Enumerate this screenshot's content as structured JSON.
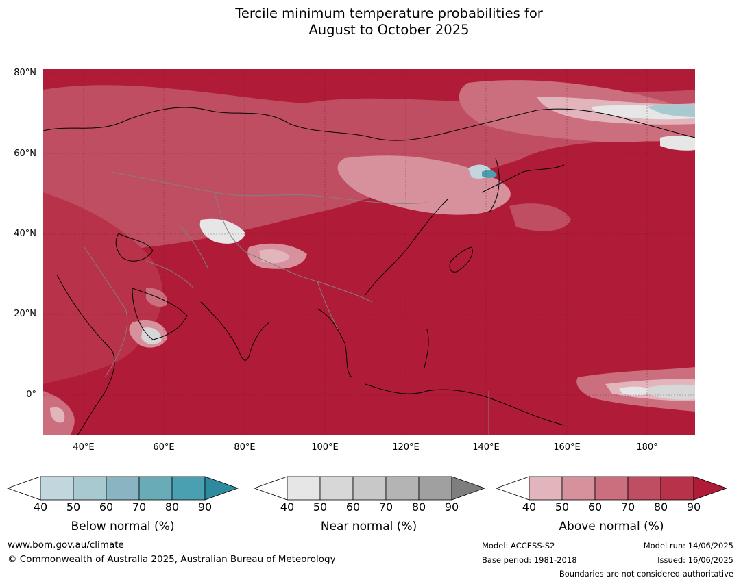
{
  "title_line1": "Tercile minimum temperature probabilities for",
  "title_line2": "August to October 2025",
  "map": {
    "lat_labels": [
      "80°N",
      "60°N",
      "40°N",
      "20°N",
      "0°"
    ],
    "lon_labels": [
      "40°E",
      "60°E",
      "80°E",
      "100°E",
      "120°E",
      "140°E",
      "160°E",
      "180°"
    ],
    "dominant_category": "Above normal",
    "dominant_color": "#b01c38"
  },
  "legends": [
    {
      "title": "Below normal (%)",
      "ticks": [
        "40",
        "50",
        "60",
        "70",
        "80",
        "90"
      ],
      "colors": [
        "#ffffff",
        "#c2d6de",
        "#a9c9d0",
        "#89b5c2",
        "#6aabb8",
        "#4aa0b0",
        "#2e8a9e"
      ]
    },
    {
      "title": "Near normal (%)",
      "ticks": [
        "40",
        "50",
        "60",
        "70",
        "80",
        "90"
      ],
      "colors": [
        "#ffffff",
        "#e6e6e6",
        "#d7d7d7",
        "#c8c8c8",
        "#b4b4b4",
        "#a0a0a0",
        "#7e7e7e"
      ]
    },
    {
      "title": "Above normal (%)",
      "ticks": [
        "40",
        "50",
        "60",
        "70",
        "80",
        "90"
      ],
      "colors": [
        "#ffffff",
        "#e2b5bd",
        "#d6919c",
        "#cb6f7e",
        "#c04e62",
        "#b83249",
        "#b01c38"
      ]
    }
  ],
  "footer": {
    "website": "www.bom.gov.au/climate",
    "copyright": "© Commonwealth of Australia 2025, Australian Bureau of Meteorology",
    "model": "Model: ACCESS-S2",
    "base_period": "Base period: 1981-2018",
    "model_run": "Model run: 14/06/2025",
    "issued": "Issued: 16/06/2025",
    "disclaimer": "Boundaries are not considered authoritative"
  }
}
